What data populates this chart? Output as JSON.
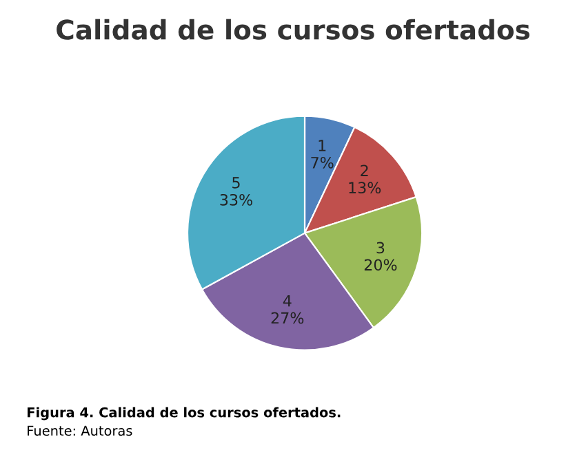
{
  "chart_data": {
    "type": "pie",
    "title": "Calidad de los cursos ofertados",
    "categories": [
      "1",
      "2",
      "3",
      "4",
      "5"
    ],
    "values": [
      7,
      13,
      20,
      27,
      33
    ],
    "value_labels": [
      "7%",
      "13%",
      "20%",
      "27%",
      "33%"
    ],
    "colors": [
      "#4f81bd",
      "#c0504d",
      "#9bbb59",
      "#8064a2",
      "#4bacc6"
    ],
    "annotations": [
      "Figura 4. Calidad de los cursos ofertados.",
      "Fuente: Autoras"
    ],
    "legend": false
  }
}
